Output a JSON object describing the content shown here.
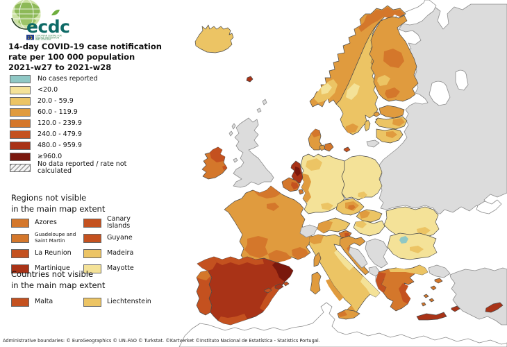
{
  "logo": {
    "wordmark": "ecdc",
    "org_lines": [
      "EUROPEAN CENTRE FOR",
      "DISEASE PREVENTION",
      "AND CONTROL"
    ]
  },
  "title": {
    "lines": [
      "14-day COVID-19 case notification",
      "rate per 100 000 population",
      "2021-w27 to 2021-w28"
    ]
  },
  "legend": {
    "items": [
      {
        "label": "No cases reported",
        "cat": "teal"
      },
      {
        "label": "<20.0",
        "cat": "c1"
      },
      {
        "label": "20.0 - 59.9",
        "cat": "c2"
      },
      {
        "label": "60.0 - 119.9",
        "cat": "c3"
      },
      {
        "label": "120.0 - 239.9",
        "cat": "c4"
      },
      {
        "label": "240.0 - 479.9",
        "cat": "c5"
      },
      {
        "label": "480.0 - 959.9",
        "cat": "c6"
      },
      {
        "label": "≥960.0",
        "cat": "c7"
      },
      {
        "label": "No data reported / rate not calculated",
        "pattern": "hatch"
      }
    ]
  },
  "regions_section": {
    "heading_lines": [
      "Regions not visible",
      "in the main map extent"
    ],
    "columns": [
      [
        {
          "label": "Azores",
          "cat": "c4"
        },
        {
          "label": "Guadeloupe and Saint Martin",
          "cat": "c4",
          "small": true
        },
        {
          "label": "La Reunion",
          "cat": "c5"
        },
        {
          "label": "Martinique",
          "cat": "c6"
        }
      ],
      [
        {
          "label": "Canary Islands",
          "cat": "c5"
        },
        {
          "label": "Guyane",
          "cat": "c5"
        },
        {
          "label": "Madeira",
          "cat": "c2"
        },
        {
          "label": "Mayotte",
          "cat": "c1"
        }
      ]
    ]
  },
  "countries_section": {
    "heading_lines": [
      "Countries not visible",
      "in the main map extent"
    ],
    "columns": [
      [
        {
          "label": "Malta",
          "cat": "c5"
        }
      ],
      [
        {
          "label": "Liechtenstein",
          "cat": "c2"
        }
      ]
    ]
  },
  "footer": {
    "text": "Administrative boundaries: © EuroGeographics © UN–FAO © Turkstat. ©Kartverket ©Instituto Nacional de Estatística - Statistics Portugal."
  },
  "map": {
    "palette": {
      "teal": "#8fc8c5",
      "c1": "#f4e298",
      "c2": "#ecc464",
      "c3": "#e09b3e",
      "c4": "#d4772b",
      "c5": "#c4511f",
      "c6": "#a93317",
      "c7": "#7a180d",
      "nodata": "#dcdcdc",
      "water": "#ffffff"
    },
    "region_categories": {
      "africa": "water",
      "russia-area": "nodata",
      "white-sea": "water",
      "ladoga": "water",
      "onega": "water",
      "crimea": "water",
      "turkey": "nodata",
      "turkey-thrace": "nodata",
      "iceland": "c2",
      "faroe": "c6",
      "norway": "c3",
      "norway-n": "c4",
      "norway-s": "c2",
      "norway-s2": "c1",
      "sweden": "c2",
      "sweden-ne": "c3",
      "sweden-c": "c1",
      "sweden-s": "c3",
      "gotland": "c2",
      "finland": "c3",
      "finland-w": "c4",
      "finland-sc": "c4",
      "finland-s2": "c2",
      "denmark": "c3",
      "denmark-n": "c4",
      "zealand": "c4",
      "funen": "c3",
      "bornholm": "c5",
      "estonia": "c3",
      "est-isl-1": "c3",
      "est-isl-2": "c2",
      "latvia": "c2",
      "latvia-e": "c3",
      "lithuania": "c2",
      "lithuania-c": "c3",
      "kaliningrad": "nodata",
      "poland": "c1",
      "poland-s": "c2",
      "germany": "c1",
      "germany-w": "c3",
      "germany-nw": "c2",
      "germany-s": "c2",
      "netherlands": "c6",
      "netherlands-c": "c7",
      "belgium": "c4",
      "belgium-e": "c5",
      "luxembourg": "c4",
      "uk": "nodata",
      "shetland": "nodata",
      "orkney": "nodata",
      "hebrides-1": "nodata",
      "hebrides-2": "nodata",
      "isle-of-man": "nodata",
      "ireland": "c4",
      "ireland-n": "c5",
      "ireland-e": "c5",
      "france": "c3",
      "france-n": "c4",
      "france-idf": "c4",
      "france-sw": "c4",
      "france-s": "c4",
      "france-se": "c4",
      "spain": "c6",
      "spain-nw": "c5",
      "spain-n": "c5",
      "spain-cat": "c7",
      "spain-e": "c5",
      "spain-s": "c5",
      "portugal": "c5",
      "portugal-n": "c4",
      "italy": "c2",
      "italy-nw": "c3",
      "italy-adr": "c1",
      "italy-lazio": "c3",
      "italy-puglia": "c1",
      "italy-toe": "c3",
      "sicily": "c3",
      "sicily-w": "c4",
      "sardinia": "c3",
      "corsica": "c3",
      "ibiza": "c5",
      "mallorca": "c6",
      "menorca": "c5",
      "switzerland": "nodata",
      "austria": "c2",
      "austria-w": "c3",
      "czechia": "c2",
      "czechia-c": "c3",
      "czechia-dot": "c4",
      "slovakia": "c2",
      "slovakia-w": "c3",
      "hungary": "c1",
      "hungary-w": "c2",
      "slovenia": "c4",
      "slovenia-c": "c5",
      "croatia": "c3",
      "croatia-coast": "c4",
      "bosnia": "nodata",
      "serbia": "nodata",
      "montenegro": "nodata",
      "albania": "nodata",
      "north-macedonia": "nodata",
      "romania": "c1",
      "romania-se": "c2",
      "bulgaria": "c1",
      "bulgaria-c": "c2",
      "bulgaria-teal": "teal",
      "greece": "c4",
      "greece-n": "c2",
      "greece-w": "c5",
      "greece-att": "c5",
      "crete": "c6",
      "rhodes": "c6",
      "lesbos": "c4",
      "chios": "c4",
      "cyc-1": "c4",
      "cyc-2": "c4",
      "cyc-3": "c4",
      "cyprus": "c6"
    }
  }
}
